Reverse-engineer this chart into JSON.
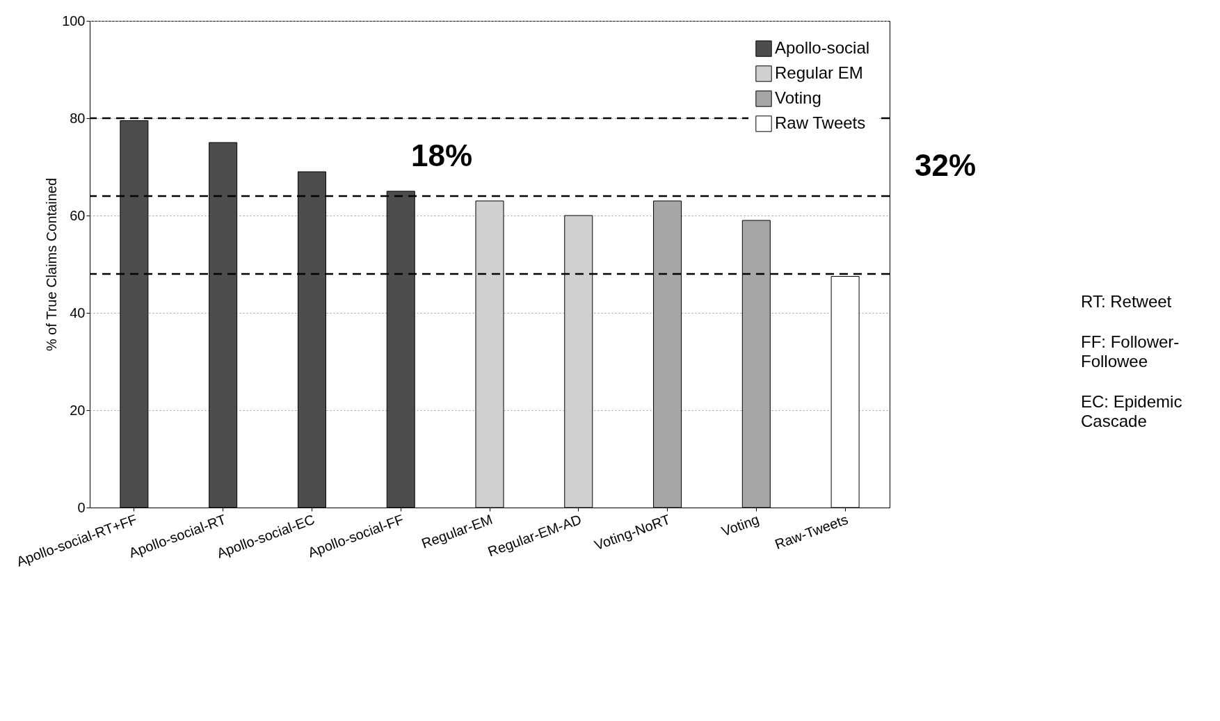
{
  "chart_data": {
    "type": "bar",
    "ylabel": "% of True Claims Contained",
    "categories": [
      "Apollo-social-RT+FF",
      "Apollo-social-RT",
      "Apollo-social-EC",
      "Apollo-social-FF",
      "Regular-EM",
      "Regular-EM-AD",
      "Voting-NoRT",
      "Voting",
      "Raw-Tweets"
    ],
    "series": [
      {
        "name": "Apollo-social",
        "color": "#4d4d4d",
        "values": [
          79.5,
          75,
          69,
          65,
          null,
          null,
          null,
          null,
          null
        ]
      },
      {
        "name": "Regular EM",
        "color": "#d0d0d0",
        "values": [
          null,
          null,
          null,
          null,
          63,
          60,
          null,
          null,
          null
        ]
      },
      {
        "name": "Voting",
        "color": "#a6a6a6",
        "values": [
          null,
          null,
          null,
          null,
          null,
          null,
          63,
          59,
          null
        ]
      },
      {
        "name": "Raw Tweets",
        "color": "#ffffff",
        "values": [
          null,
          null,
          null,
          null,
          null,
          null,
          null,
          null,
          47.5
        ]
      }
    ],
    "ylim": [
      0,
      100
    ],
    "yticks": [
      0,
      20,
      40,
      60,
      80,
      100
    ],
    "grid": "y",
    "legend": "top right",
    "ref_lines": [
      {
        "axis": "y",
        "value": 80,
        "line_style": "dashed"
      },
      {
        "axis": "y",
        "value": 64,
        "line_style": "dashed"
      },
      {
        "axis": "y",
        "value": 48,
        "line_style": "dashed"
      }
    ],
    "annotations": [
      "18%",
      "32%",
      "RT: Retweet",
      "FF: Follower-Followee",
      "EC: Epidemic Cascade"
    ]
  }
}
